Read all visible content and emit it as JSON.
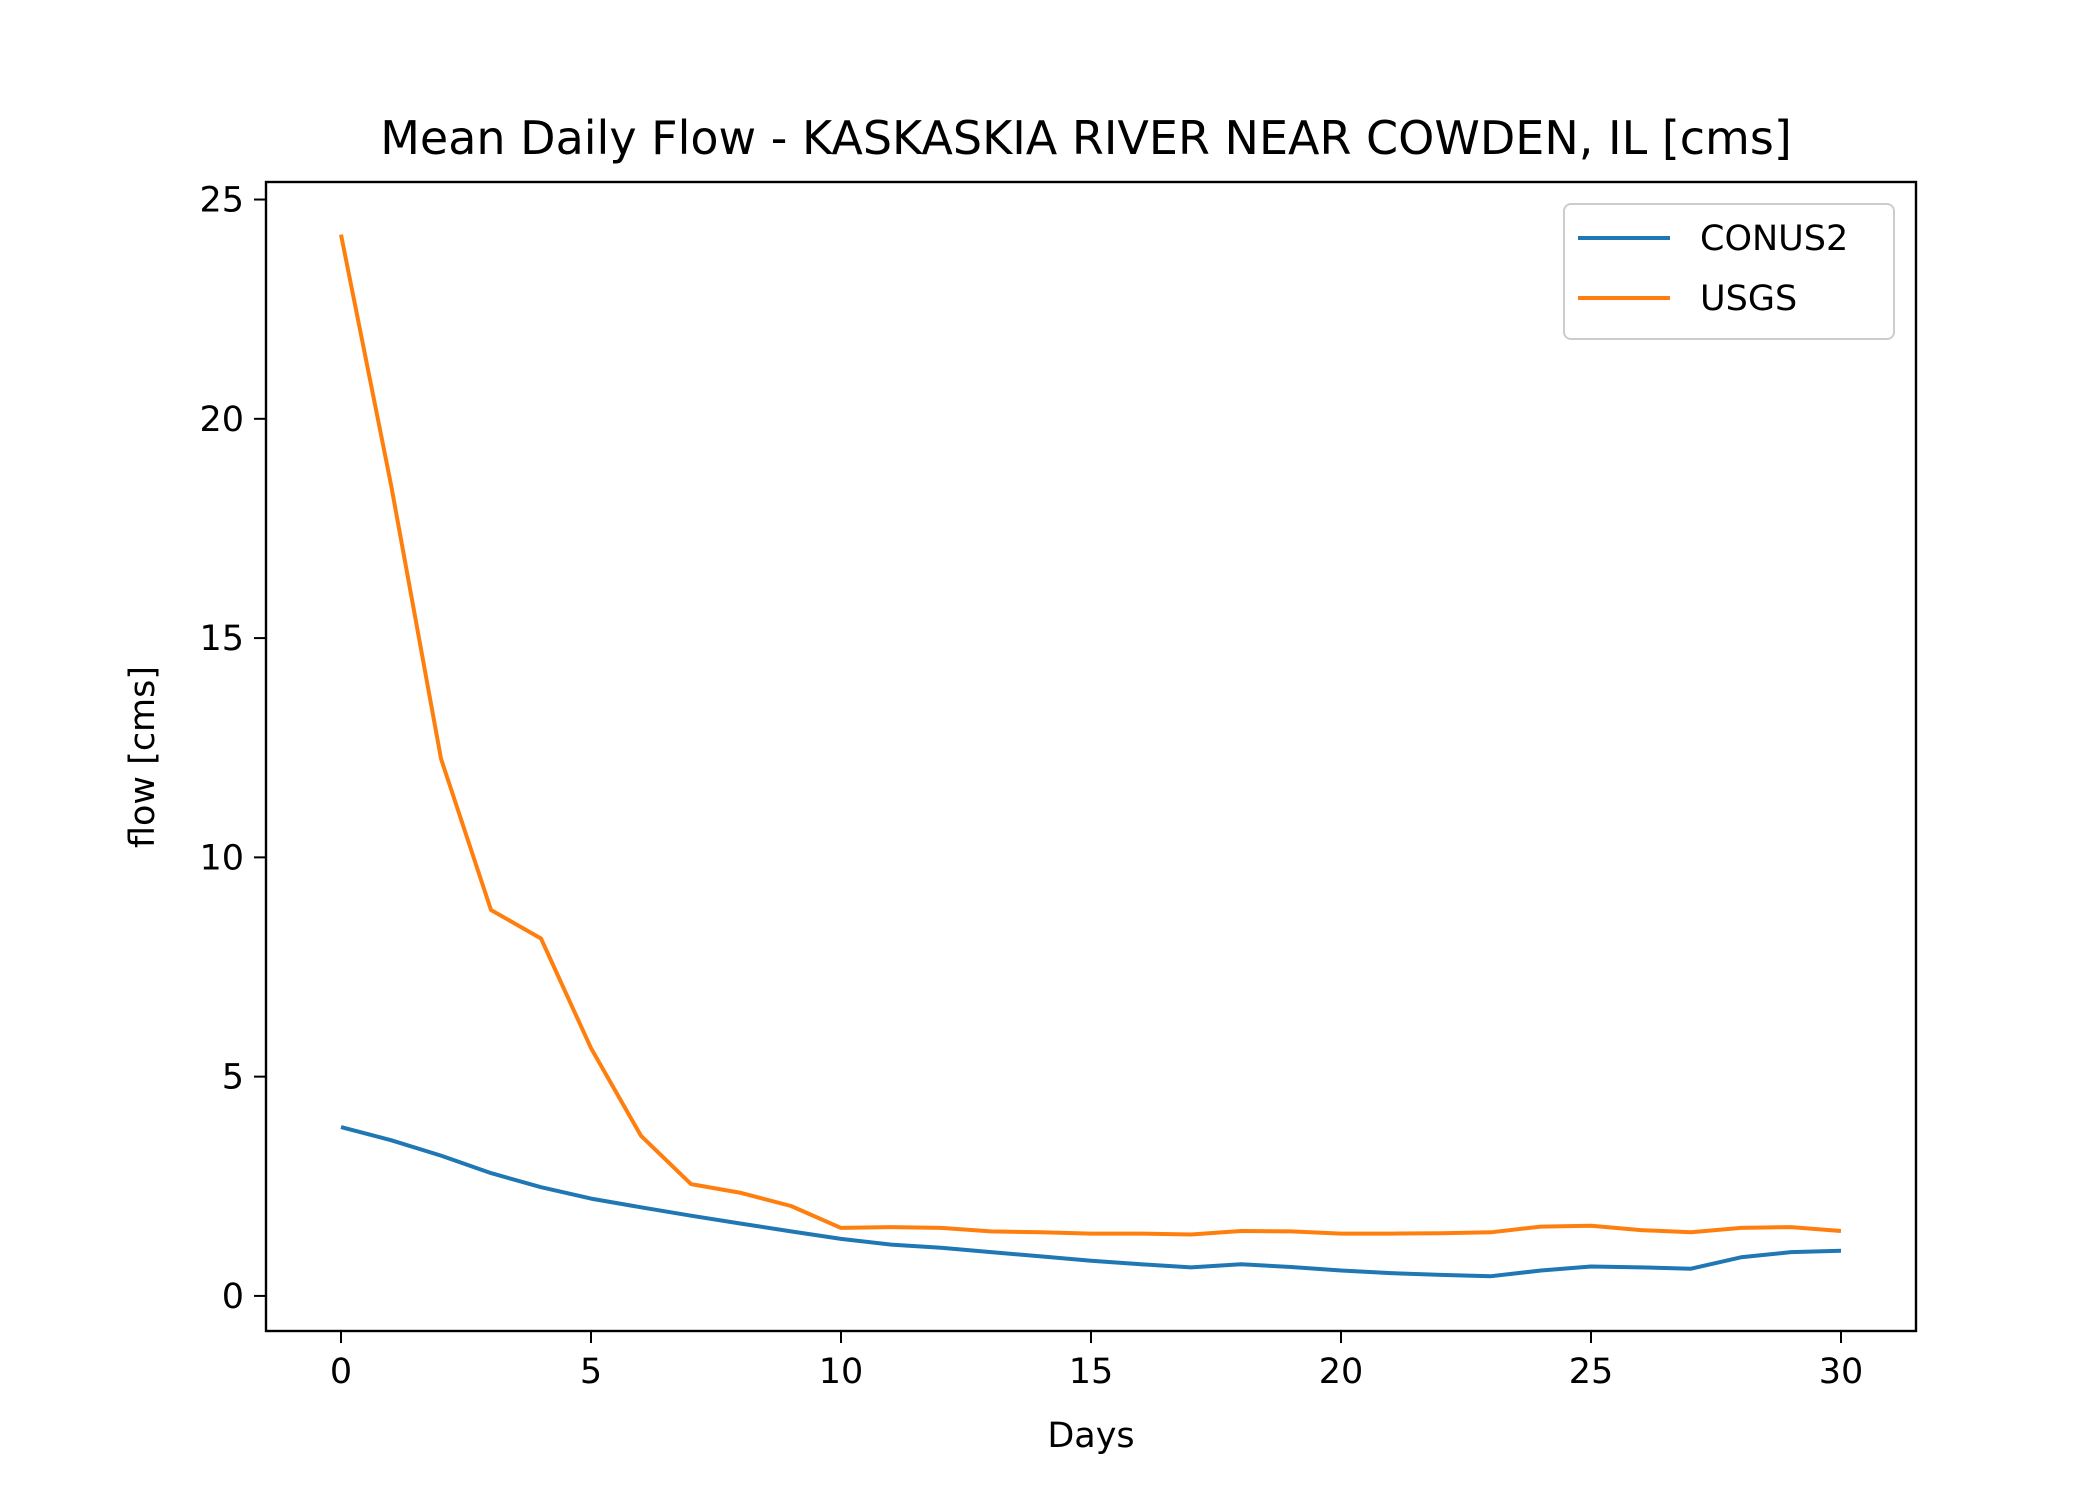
{
  "chart_data": {
    "type": "line",
    "title": "Mean Daily Flow - KASKASKIA RIVER NEAR COWDEN, IL [cms]",
    "xlabel": "Days",
    "ylabel": "flow [cms]",
    "xlim": [
      -1.5,
      31.5
    ],
    "ylim": [
      -0.8,
      25.4
    ],
    "xticks": [
      0,
      5,
      10,
      15,
      20,
      25,
      30
    ],
    "yticks": [
      0,
      5,
      10,
      15,
      20,
      25
    ],
    "grid": false,
    "legend": "upper right",
    "x": [
      0,
      1,
      2,
      3,
      4,
      5,
      6,
      7,
      8,
      9,
      10,
      11,
      12,
      13,
      14,
      15,
      16,
      17,
      18,
      19,
      20,
      21,
      22,
      23,
      24,
      25,
      26,
      27,
      28,
      29,
      30
    ],
    "series": [
      {
        "name": "CONUS2",
        "color": "#1f77b4",
        "values": [
          3.85,
          3.55,
          3.2,
          2.8,
          2.48,
          2.22,
          2.02,
          1.83,
          1.65,
          1.47,
          1.3,
          1.17,
          1.1,
          1.0,
          0.9,
          0.8,
          0.72,
          0.65,
          0.72,
          0.66,
          0.58,
          0.52,
          0.48,
          0.45,
          0.58,
          0.67,
          0.65,
          0.62,
          0.88,
          1.0,
          1.03
        ]
      },
      {
        "name": "USGS",
        "color": "#ff7f0e",
        "values": [
          24.2,
          18.5,
          12.25,
          8.8,
          8.15,
          5.65,
          3.65,
          2.55,
          2.35,
          2.05,
          1.55,
          1.57,
          1.55,
          1.47,
          1.45,
          1.42,
          1.42,
          1.4,
          1.48,
          1.47,
          1.42,
          1.42,
          1.43,
          1.45,
          1.58,
          1.6,
          1.5,
          1.45,
          1.55,
          1.57,
          1.48
        ]
      }
    ]
  }
}
